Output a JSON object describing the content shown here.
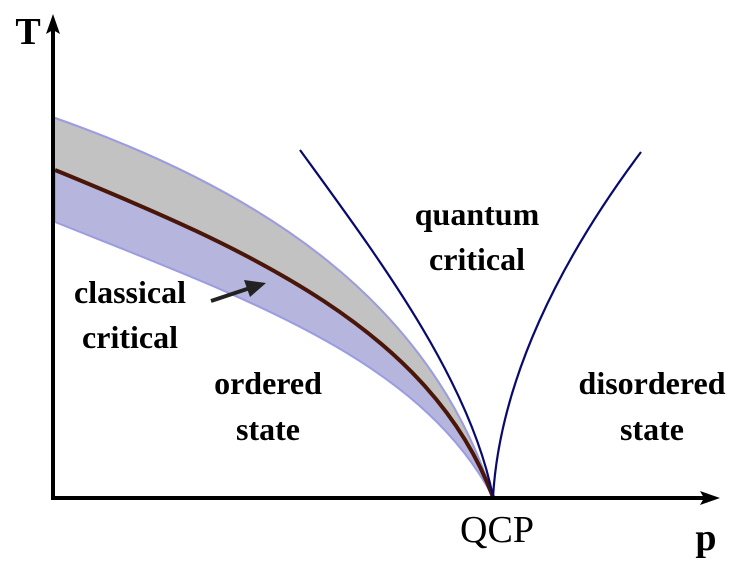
{
  "axes": {
    "y_label": "T",
    "x_label": "p",
    "point_label": "QCP"
  },
  "regions": [
    {
      "lines": [
        "quantum",
        "critical"
      ]
    },
    {
      "lines": [
        "classical",
        "critical"
      ]
    },
    {
      "lines": [
        "ordered",
        "state"
      ]
    },
    {
      "lines": [
        "disordered",
        "state"
      ]
    }
  ]
}
